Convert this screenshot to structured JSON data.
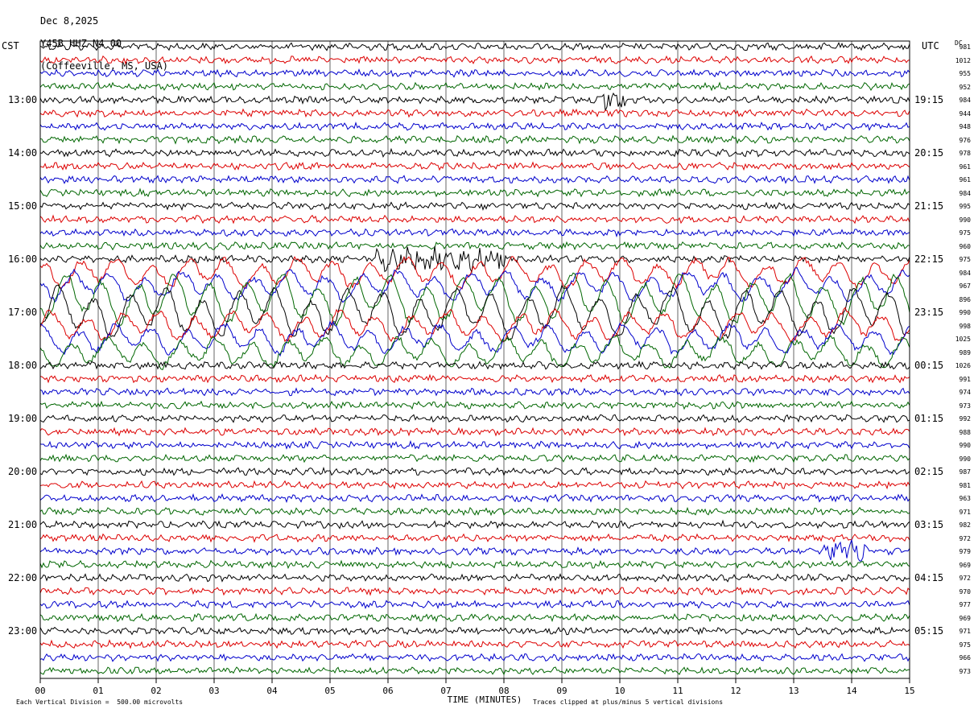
{
  "header": {
    "date": "Dec 8,2025",
    "station": "Y45B HHZ N4 00",
    "location": "(Coffeeville, MS, USA)"
  },
  "left_tz": "CST",
  "right_tz": "UTC",
  "dc_label": "DC",
  "chart_data": {
    "type": "line",
    "title": "Dec 8,2025 Y45B HHZ N4 00 (Coffeeville, MS, USA)",
    "xlabel": "TIME (MINUTES)",
    "xlim": [
      0,
      15
    ],
    "x_ticks": [
      "00",
      "01",
      "02",
      "03",
      "04",
      "05",
      "06",
      "07",
      "08",
      "09",
      "10",
      "11",
      "12",
      "13",
      "14",
      "15"
    ],
    "trace_colors": [
      "#000000",
      "#dd0000",
      "#0000cc",
      "#006600"
    ],
    "trace_count": 48,
    "left_hour_labels": [
      "13:00",
      "14:00",
      "15:00",
      "16:00",
      "17:00",
      "18:00",
      "19:00",
      "20:00",
      "21:00",
      "22:00",
      "23:00"
    ],
    "right_hour_labels": [
      "19:15",
      "20:15",
      "21:15",
      "22:15",
      "23:15",
      "00:15",
      "01:15",
      "02:15",
      "03:15",
      "04:15",
      "05:15"
    ],
    "dc_offsets": [
      981,
      1012,
      955,
      952,
      984,
      944,
      948,
      976,
      978,
      961,
      961,
      984,
      995,
      990,
      975,
      960,
      975,
      984,
      967,
      896,
      990,
      998,
      1025,
      989,
      1026,
      991,
      974,
      973,
      992,
      988,
      990,
      990,
      987,
      981,
      963,
      971,
      982,
      972,
      979,
      969,
      972,
      970,
      977,
      969,
      971,
      975,
      966,
      973
    ],
    "scale_note": "Each Vertical Division =  500.00 microvolts",
    "clip_note": "Traces clipped at plus/minus 5 vertical divisions",
    "events": [
      {
        "trace": 4,
        "start_min": 9.6,
        "end_min": 10.1,
        "label": ""
      },
      {
        "trace": 16,
        "start_min": 5.8,
        "end_min": 8.0,
        "label": ""
      },
      {
        "trace": 38,
        "start_min": 13.5,
        "end_min": 14.3,
        "label": ""
      }
    ],
    "large_wave_traces": [
      17,
      18,
      19,
      20,
      21,
      22,
      23
    ]
  }
}
